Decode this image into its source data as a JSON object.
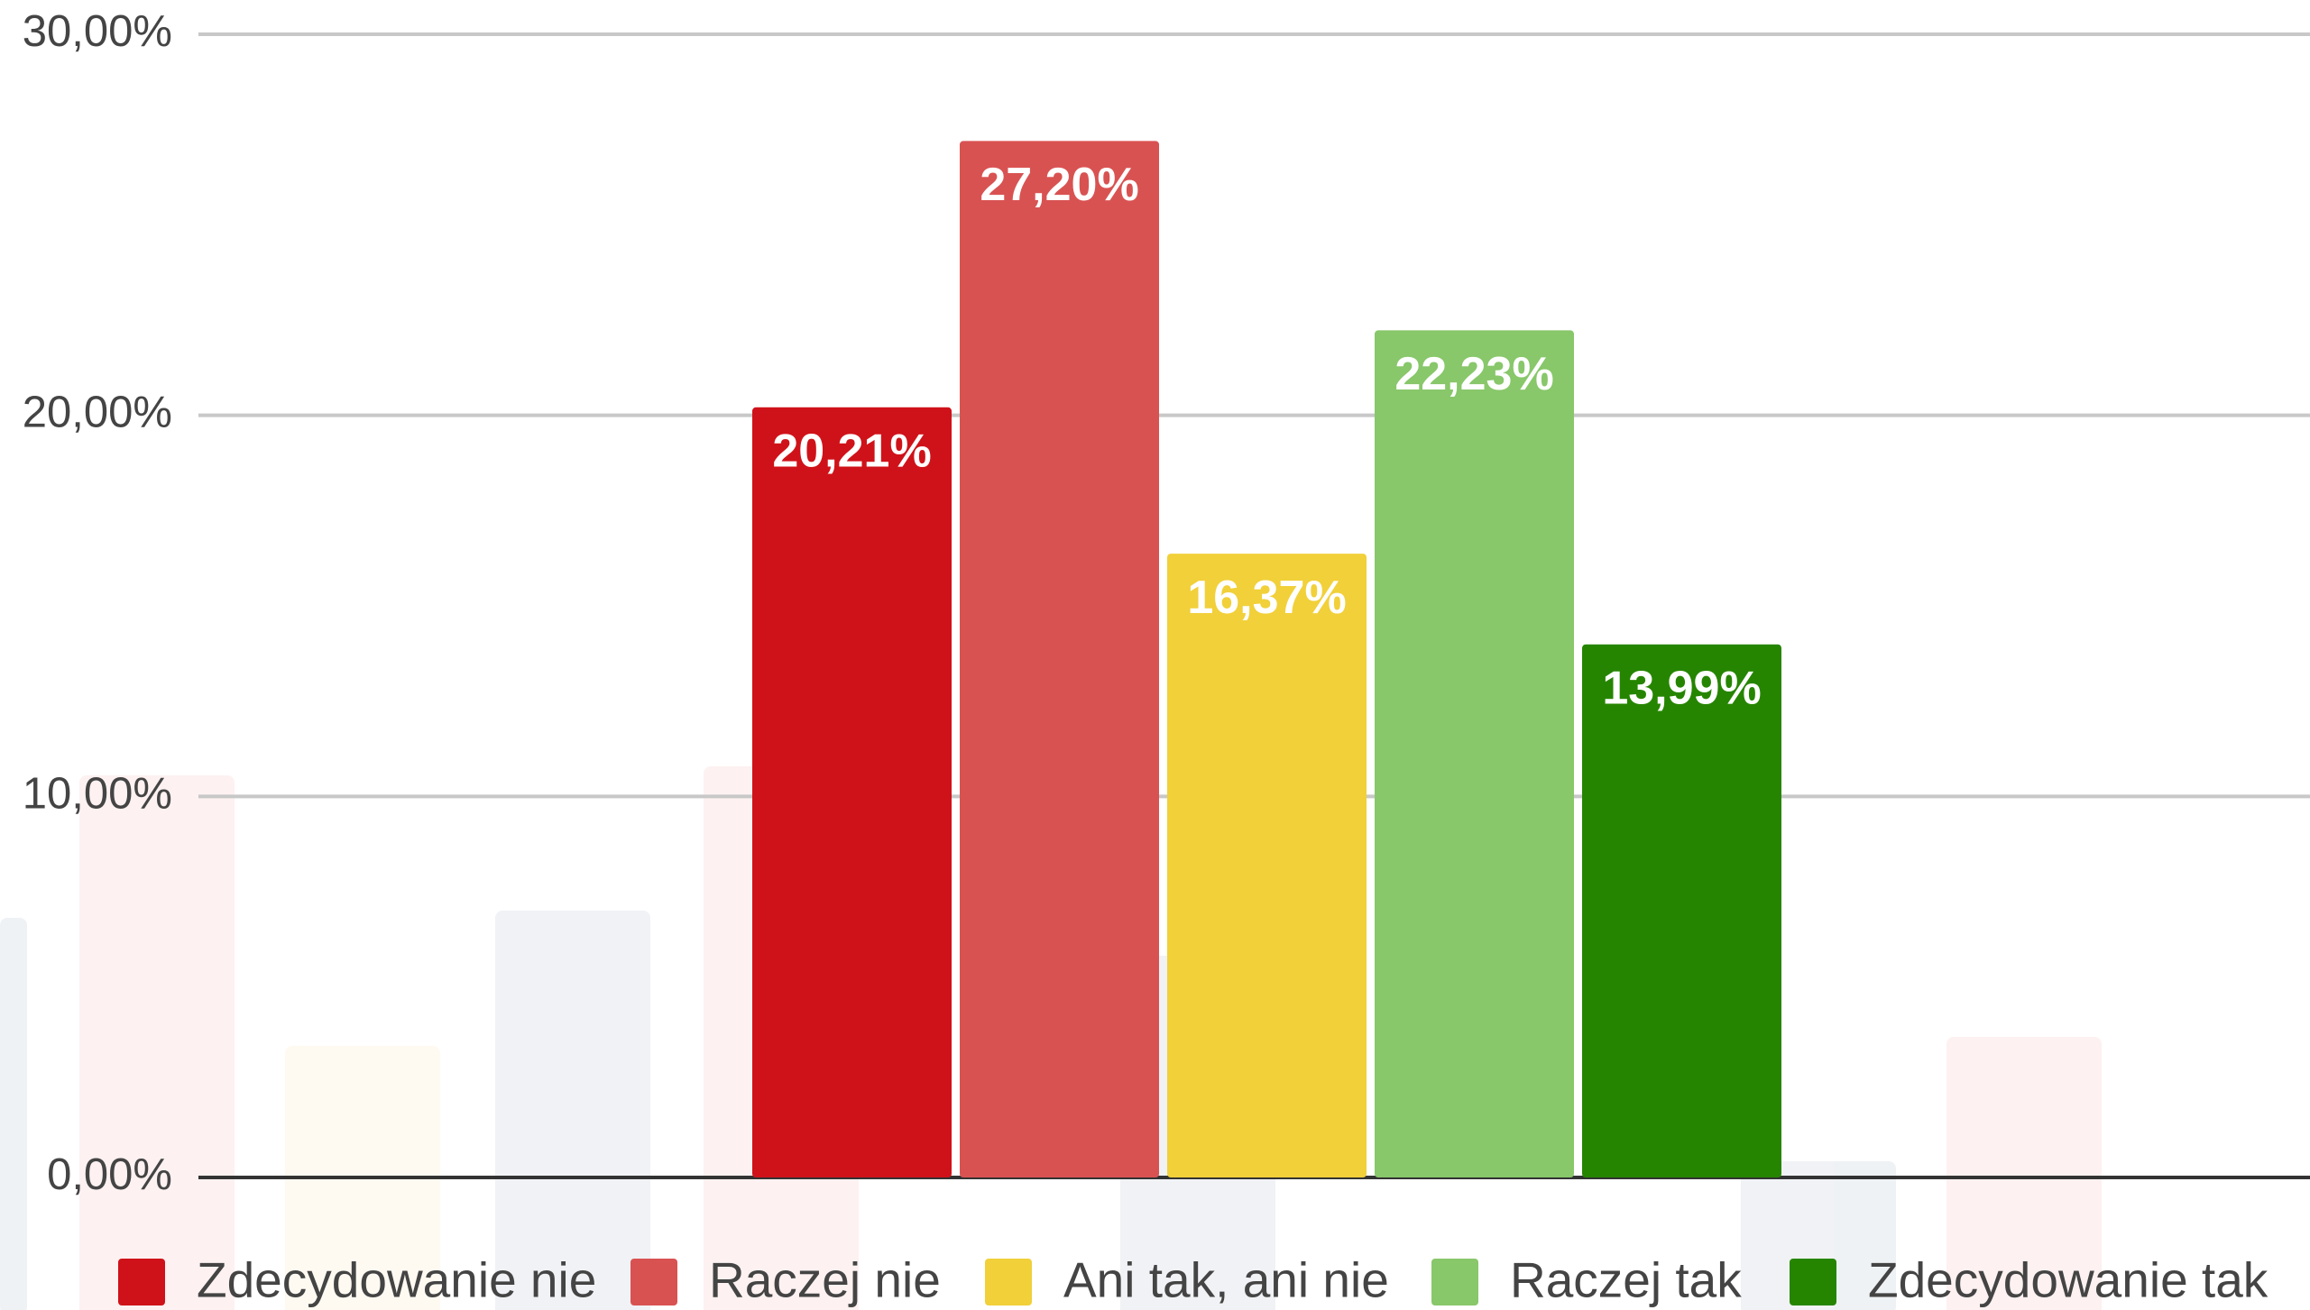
{
  "chart_data": {
    "type": "bar",
    "categories": [
      null
    ],
    "series": [
      {
        "name": "Zdecydowanie nie",
        "color": "#cf1219",
        "values": [
          20.21
        ],
        "value_labels": [
          "20,21%"
        ]
      },
      {
        "name": "Raczej nie",
        "color": "#d95252",
        "values": [
          27.2
        ],
        "value_labels": [
          "27,20%"
        ]
      },
      {
        "name": "Ani tak, ani nie",
        "color": "#f1d03a",
        "values": [
          16.37
        ],
        "value_labels": [
          "16,37%"
        ]
      },
      {
        "name": "Raczej tak",
        "color": "#88c76a",
        "values": [
          22.23
        ],
        "value_labels": [
          "22,23%"
        ]
      },
      {
        "name": "Zdecydowanie tak",
        "color": "#268500",
        "values": [
          13.99
        ],
        "value_labels": [
          "13,99%"
        ]
      }
    ],
    "ylim": [
      0,
      30
    ],
    "yticks": [
      {
        "value": 0,
        "label": "0,00%"
      },
      {
        "value": 10,
        "label": "10,00%"
      },
      {
        "value": 20,
        "label": "20,00%"
      },
      {
        "value": 30,
        "label": "30,00%"
      }
    ],
    "grid": true,
    "legend": "bottom"
  }
}
